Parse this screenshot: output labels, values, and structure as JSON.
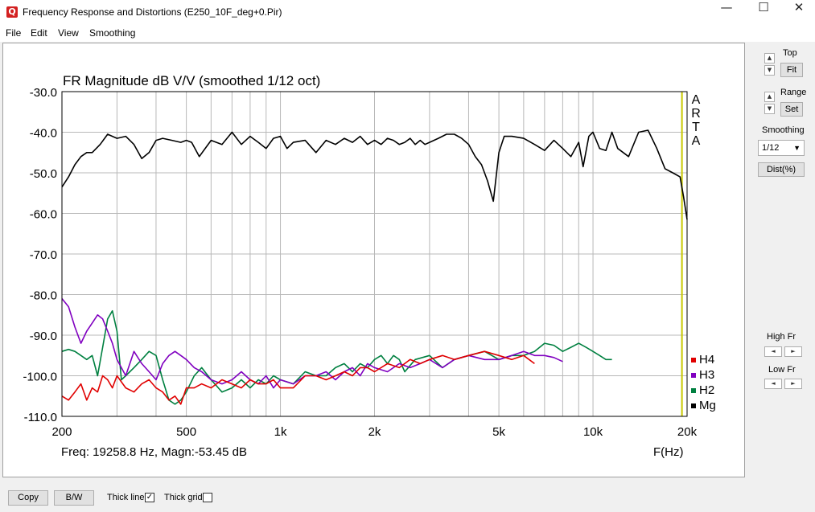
{
  "window": {
    "title": "Frequency Response and Distortions (E250_10F_deg+0.Pir)",
    "minimize": "—",
    "maximize": "☐",
    "close": "✕",
    "icon_letter": "Q"
  },
  "menu": [
    "File",
    "Edit",
    "View",
    "Smoothing"
  ],
  "side_panel": {
    "top_label": "Top",
    "fit_label": "Fit",
    "range_label": "Range",
    "set_label": "Set",
    "smoothing_label": "Smoothing",
    "smoothing_value": "1/12",
    "dist_label": "Dist(%)",
    "high_fr_label": "High Fr",
    "low_fr_label": "Low Fr",
    "up_glyph": "▲",
    "down_glyph": "▼",
    "left_glyph": "◄",
    "right_glyph": "►"
  },
  "bottom_bar": {
    "copy_label": "Copy",
    "bw_label": "B/W",
    "thick_line_label": "Thick line",
    "thick_line_checked": true,
    "thick_grid_label": "Thick grid",
    "thick_grid_checked": false,
    "check_glyph": "✓"
  },
  "chart_data": {
    "type": "line",
    "title": "FR Magnitude dB V/V (smoothed 1/12 oct)",
    "xlabel": "F(Hz)",
    "xscale": "log",
    "xlim": [
      200,
      20000
    ],
    "ylim": [
      -110,
      -30
    ],
    "yticks": [
      -30,
      -40,
      -50,
      -60,
      -70,
      -80,
      -90,
      -100,
      -110
    ],
    "ytick_labels": [
      "-30.0",
      "-40.0",
      "-50.0",
      "-60.0",
      "-70.0",
      "-80.0",
      "-90.0",
      "-100.0",
      "-110.0"
    ],
    "xticks": [
      200,
      500,
      1000,
      2000,
      5000,
      10000,
      20000
    ],
    "xtick_labels": [
      "200",
      "500",
      "1k",
      "2k",
      "5k",
      "10k",
      "20k"
    ],
    "grid": true,
    "legend_position": "bottom-right",
    "watermark": [
      "A",
      "R",
      "T",
      "A"
    ],
    "cursor": {
      "freq": 19258.8,
      "text": "Freq: 19258.8 Hz, Magn:-53.45 dB",
      "color": "#c8c800"
    },
    "series": [
      {
        "name": "Mg",
        "color": "#000000",
        "x": [
          200,
          210,
          220,
          230,
          240,
          250,
          265,
          280,
          290,
          300,
          320,
          340,
          360,
          380,
          400,
          420,
          450,
          480,
          500,
          520,
          550,
          600,
          650,
          700,
          750,
          800,
          850,
          900,
          950,
          1000,
          1050,
          1100,
          1200,
          1300,
          1400,
          1500,
          1600,
          1700,
          1800,
          1900,
          2000,
          2100,
          2200,
          2300,
          2400,
          2500,
          2600,
          2700,
          2800,
          2900,
          3000,
          3200,
          3400,
          3600,
          3800,
          4000,
          4200,
          4400,
          4600,
          4800,
          5000,
          5200,
          5500,
          6000,
          6500,
          7000,
          7500,
          8000,
          8500,
          9000,
          9300,
          9700,
          10000,
          10500,
          11000,
          11500,
          12000,
          13000,
          14000,
          15000,
          16000,
          17000,
          18000,
          19000,
          19500,
          20000
        ],
        "y": [
          -53.5,
          -51,
          -48,
          -46,
          -45,
          -45,
          -43,
          -40.5,
          -41,
          -41.5,
          -41,
          -43,
          -46.5,
          -45,
          -42,
          -41.5,
          -42,
          -42.5,
          -42,
          -42.5,
          -46,
          -42,
          -43,
          -40,
          -43,
          -41,
          -42.5,
          -44,
          -41.5,
          -41,
          -44,
          -42.5,
          -42,
          -45,
          -42,
          -43,
          -41.5,
          -42.5,
          -41,
          -43,
          -42,
          -43,
          -41.5,
          -42,
          -43,
          -42.5,
          -41.5,
          -43,
          -42,
          -43,
          -42.5,
          -41.5,
          -40.5,
          -40.5,
          -41.5,
          -43,
          -46,
          -48,
          -52,
          -57,
          -45,
          -41,
          -41,
          -41.5,
          -43,
          -44.5,
          -42,
          -44,
          -46,
          -42.5,
          -48.5,
          -41,
          -40,
          -44,
          -44.5,
          -40,
          -44,
          -46,
          -40,
          -39.5,
          -44,
          -49,
          -50,
          -51,
          -56,
          -61.5
        ]
      },
      {
        "name": "H2",
        "color": "#008040",
        "x": [
          200,
          210,
          220,
          230,
          240,
          250,
          260,
          270,
          280,
          290,
          300,
          310,
          320,
          340,
          360,
          380,
          400,
          420,
          440,
          460,
          480,
          500,
          530,
          560,
          600,
          650,
          700,
          750,
          800,
          850,
          900,
          950,
          1000,
          1100,
          1200,
          1300,
          1400,
          1500,
          1600,
          1700,
          1800,
          1900,
          2000,
          2100,
          2200,
          2300,
          2400,
          2500,
          2700,
          3000,
          3300,
          3600,
          4000,
          4500,
          5000,
          5500,
          6000,
          6500,
          7000,
          7500,
          8000,
          8500,
          9000,
          9500,
          10000,
          10500,
          11000,
          11500
        ],
        "y": [
          -94,
          -93.5,
          -94,
          -95,
          -96,
          -95,
          -100,
          -93,
          -86,
          -84,
          -89,
          -101,
          -100,
          -98,
          -96,
          -94,
          -95,
          -101,
          -106,
          -107,
          -106,
          -104,
          -100,
          -98,
          -101,
          -104,
          -103,
          -101,
          -103,
          -101,
          -102,
          -100,
          -101,
          -102,
          -99,
          -100,
          -100,
          -98,
          -97,
          -99,
          -97,
          -98,
          -96,
          -95,
          -97,
          -95,
          -96,
          -99,
          -96,
          -95,
          -98,
          -96,
          -95,
          -94,
          -96,
          -95,
          -95,
          -94,
          -92,
          -92.5,
          -94,
          -93,
          -92,
          -93,
          -94,
          -95,
          -96,
          -96
        ]
      },
      {
        "name": "H3",
        "color": "#8000c0",
        "x": [
          200,
          210,
          220,
          230,
          240,
          250,
          260,
          270,
          280,
          290,
          300,
          320,
          340,
          360,
          380,
          400,
          420,
          440,
          460,
          480,
          500,
          530,
          560,
          600,
          650,
          700,
          750,
          800,
          850,
          900,
          950,
          1000,
          1100,
          1200,
          1300,
          1400,
          1500,
          1600,
          1700,
          1800,
          1900,
          2000,
          2200,
          2400,
          2600,
          2800,
          3000,
          3300,
          3600,
          4000,
          4500,
          5000,
          5500,
          6000,
          6500,
          7000,
          7500,
          8000
        ],
        "y": [
          -81,
          -83,
          -88,
          -92,
          -89,
          -87,
          -85,
          -86,
          -89,
          -92,
          -96,
          -100,
          -94,
          -97,
          -99,
          -101,
          -97,
          -95,
          -94,
          -95,
          -96,
          -98,
          -99,
          -101,
          -102,
          -101,
          -99,
          -101,
          -102,
          -100,
          -103,
          -101,
          -102,
          -100,
          -100,
          -99,
          -101,
          -99,
          -98,
          -100,
          -97,
          -98,
          -99,
          -97,
          -98,
          -97,
          -96,
          -98,
          -96,
          -95,
          -96,
          -96,
          -95,
          -94,
          -95,
          -95,
          -95.5,
          -96.5
        ]
      },
      {
        "name": "H4",
        "color": "#e00000",
        "x": [
          200,
          210,
          220,
          230,
          240,
          250,
          260,
          270,
          280,
          290,
          300,
          320,
          340,
          360,
          380,
          400,
          420,
          440,
          460,
          480,
          500,
          530,
          560,
          600,
          650,
          700,
          750,
          800,
          850,
          900,
          950,
          1000,
          1100,
          1200,
          1300,
          1400,
          1500,
          1600,
          1700,
          1800,
          1900,
          2000,
          2200,
          2400,
          2600,
          2800,
          3000,
          3300,
          3600,
          4000,
          4500,
          5000,
          5500,
          6000,
          6500
        ],
        "y": [
          -105,
          -106,
          -104,
          -102,
          -106,
          -103,
          -104,
          -100,
          -101,
          -103,
          -100,
          -103,
          -104,
          -102,
          -101,
          -103,
          -104,
          -106,
          -105,
          -107,
          -103,
          -103,
          -102,
          -103,
          -101,
          -102,
          -103,
          -101,
          -102,
          -102,
          -101,
          -103,
          -103,
          -100,
          -100,
          -101,
          -100,
          -99,
          -100,
          -98,
          -98,
          -99,
          -97,
          -98,
          -96,
          -97,
          -96,
          -95,
          -96,
          -95,
          -94,
          -95,
          -96,
          -95,
          -97
        ]
      }
    ]
  }
}
